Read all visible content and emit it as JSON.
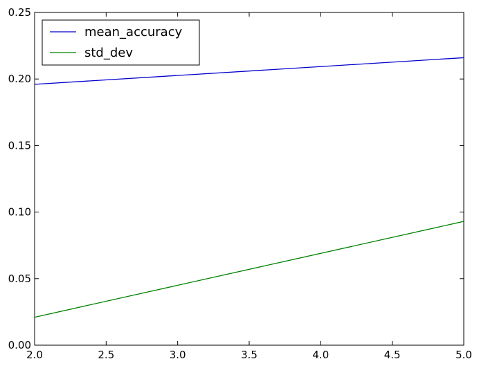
{
  "chart_data": {
    "type": "line",
    "title": "",
    "xlabel": "",
    "ylabel": "",
    "xlim": [
      2.0,
      5.0
    ],
    "ylim": [
      0.0,
      0.25
    ],
    "xticks": [
      "2.0",
      "2.5",
      "3.0",
      "3.5",
      "4.0",
      "4.5",
      "5.0"
    ],
    "yticks": [
      "0.00",
      "0.05",
      "0.10",
      "0.15",
      "0.20",
      "0.25"
    ],
    "grid": false,
    "legend_position": "top-left",
    "series": [
      {
        "name": "mean_accuracy",
        "color": "#0000cc",
        "x": [
          2.0,
          5.0
        ],
        "y": [
          0.196,
          0.216
        ]
      },
      {
        "name": "std_dev",
        "color": "#008000",
        "x": [
          2.0,
          5.0
        ],
        "y": [
          0.021,
          0.093
        ]
      }
    ]
  }
}
